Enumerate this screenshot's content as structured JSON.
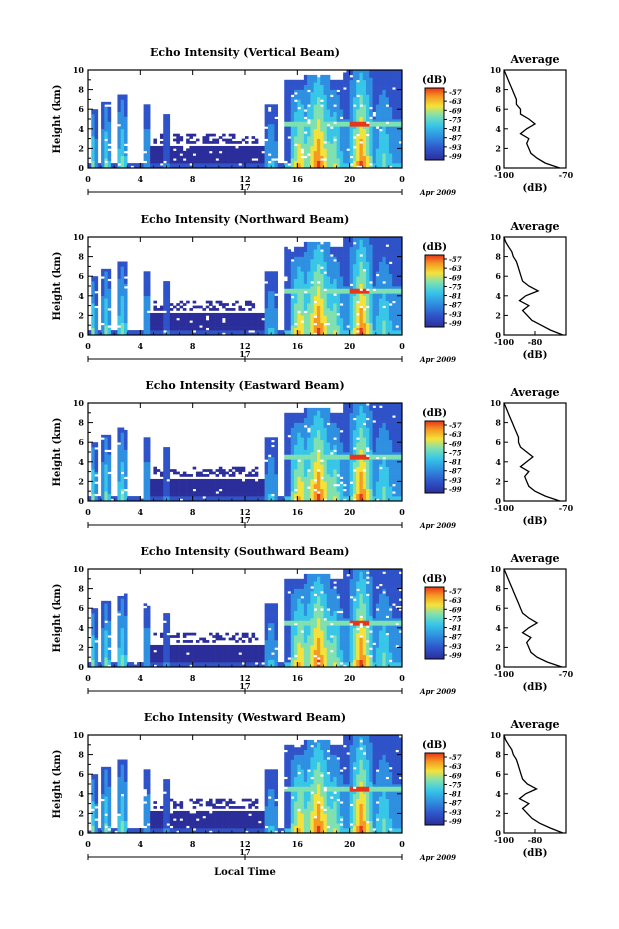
{
  "chart_data": [
    {
      "type": "heatmap",
      "title": "Echo Intensity (Vertical Beam)",
      "ylabel": "Height (km)",
      "ylim": [
        0,
        10
      ],
      "y_ticks": [
        "0",
        "2",
        "4",
        "6",
        "8",
        "10"
      ],
      "xlim": [
        0,
        24
      ],
      "x_ticks": [
        "0",
        "4",
        "8",
        "12",
        "16",
        "20",
        "0"
      ],
      "date_label": "17",
      "month_label": "Apr 2009",
      "colorbar": {
        "unit": "(dB)",
        "ticks": [
          "-57",
          "-63",
          "-69",
          "-75",
          "-81",
          "-87",
          "-93",
          "-99"
        ]
      },
      "profile": {
        "title": "Average",
        "xlabel": "(dB)",
        "x_ticks": [
          "-100",
          "-70"
        ],
        "xlim": [
          -100,
          -70
        ],
        "y_ticks": [
          "0",
          "2",
          "4",
          "6",
          "8",
          "10"
        ],
        "points": [
          [
            -73,
            0
          ],
          [
            -80,
            0.5
          ],
          [
            -84,
            1
          ],
          [
            -87,
            1.5
          ],
          [
            -88,
            2
          ],
          [
            -89,
            2.5
          ],
          [
            -88,
            3
          ],
          [
            -92,
            3.5
          ],
          [
            -89,
            4
          ],
          [
            -85,
            4.5
          ],
          [
            -88,
            5
          ],
          [
            -92,
            5.5
          ],
          [
            -92,
            6
          ],
          [
            -94,
            6.5
          ],
          [
            -94,
            7
          ],
          [
            -95,
            7.5
          ],
          [
            -96,
            8
          ],
          [
            -97,
            8.5
          ],
          [
            -98,
            9
          ],
          [
            -99,
            9.5
          ],
          [
            -100,
            10
          ]
        ]
      }
    },
    {
      "type": "heatmap",
      "title": "Echo Intensity (Northward Beam)",
      "ylabel": "Height (km)",
      "ylim": [
        0,
        10
      ],
      "y_ticks": [
        "0",
        "2",
        "4",
        "6",
        "8",
        "10"
      ],
      "xlim": [
        0,
        24
      ],
      "x_ticks": [
        "0",
        "4",
        "8",
        "12",
        "16",
        "20",
        "0"
      ],
      "date_label": "17",
      "month_label": "Apr 2009",
      "colorbar": {
        "unit": "(dB)",
        "ticks": [
          "-57",
          "-63",
          "-69",
          "-75",
          "-81",
          "-87",
          "-93",
          "-99"
        ]
      },
      "profile": {
        "title": "Average",
        "xlabel": "(dB)",
        "x_ticks": [
          "-100",
          "-80"
        ],
        "xlim": [
          -100,
          -60
        ],
        "y_ticks": [
          "0",
          "2",
          "4",
          "6",
          "8",
          "10"
        ],
        "points": [
          [
            -62,
            0
          ],
          [
            -70,
            0.5
          ],
          [
            -76,
            1
          ],
          [
            -82,
            1.5
          ],
          [
            -85,
            2
          ],
          [
            -88,
            2.5
          ],
          [
            -84,
            3
          ],
          [
            -90,
            3.5
          ],
          [
            -86,
            4
          ],
          [
            -78,
            4.5
          ],
          [
            -84,
            5
          ],
          [
            -88,
            5.5
          ],
          [
            -89,
            6
          ],
          [
            -90,
            6.5
          ],
          [
            -91,
            7
          ],
          [
            -92,
            7.5
          ],
          [
            -94,
            8
          ],
          [
            -95,
            8.5
          ],
          [
            -97,
            9
          ],
          [
            -99,
            9.5
          ],
          [
            -100,
            10
          ]
        ]
      }
    },
    {
      "type": "heatmap",
      "title": "Echo Intensity (Eastward Beam)",
      "ylabel": "Height (km)",
      "ylim": [
        0,
        10
      ],
      "y_ticks": [
        "0",
        "2",
        "4",
        "6",
        "8",
        "10"
      ],
      "xlim": [
        0,
        24
      ],
      "x_ticks": [
        "0",
        "4",
        "8",
        "12",
        "16",
        "20",
        "0"
      ],
      "date_label": "17",
      "month_label": "Apr 2009",
      "colorbar": {
        "unit": "(dB)",
        "ticks": [
          "-57",
          "-63",
          "-69",
          "-75",
          "-81",
          "-87",
          "-93",
          "-99"
        ]
      },
      "profile": {
        "title": "Average",
        "xlabel": "(dB)",
        "x_ticks": [
          "-100",
          "-70"
        ],
        "xlim": [
          -100,
          -70
        ],
        "y_ticks": [
          "0",
          "2",
          "4",
          "6",
          "8",
          "10"
        ],
        "points": [
          [
            -73,
            0
          ],
          [
            -80,
            0.5
          ],
          [
            -85,
            1
          ],
          [
            -88,
            1.5
          ],
          [
            -89,
            2
          ],
          [
            -90,
            2.5
          ],
          [
            -88,
            3
          ],
          [
            -92,
            3.5
          ],
          [
            -89,
            4
          ],
          [
            -86,
            4.5
          ],
          [
            -89,
            5
          ],
          [
            -92,
            5.5
          ],
          [
            -93,
            6
          ],
          [
            -93,
            6.5
          ],
          [
            -94,
            7
          ],
          [
            -95,
            7.5
          ],
          [
            -96,
            8
          ],
          [
            -97,
            8.5
          ],
          [
            -98,
            9
          ],
          [
            -99,
            9.5
          ],
          [
            -100,
            10
          ]
        ]
      }
    },
    {
      "type": "heatmap",
      "title": "Echo Intensity (Southward Beam)",
      "ylabel": "Height (km)",
      "ylim": [
        0,
        10
      ],
      "y_ticks": [
        "0",
        "2",
        "4",
        "6",
        "8",
        "10"
      ],
      "xlim": [
        0,
        24
      ],
      "x_ticks": [
        "0",
        "4",
        "8",
        "12",
        "16",
        "20",
        "0"
      ],
      "date_label": "17",
      "month_label": "Apr 2009",
      "colorbar": {
        "unit": "(dB)",
        "ticks": [
          "-57",
          "-63",
          "-69",
          "-75",
          "-81",
          "-87",
          "-93",
          "-99"
        ]
      },
      "profile": {
        "title": "Average",
        "xlabel": "(dB)",
        "x_ticks": [
          "-100",
          "-70"
        ],
        "xlim": [
          -100,
          -70
        ],
        "y_ticks": [
          "0",
          "2",
          "4",
          "6",
          "8",
          "10"
        ],
        "points": [
          [
            -72,
            0
          ],
          [
            -79,
            0.5
          ],
          [
            -84,
            1
          ],
          [
            -87,
            1.5
          ],
          [
            -88,
            2
          ],
          [
            -89,
            2.5
          ],
          [
            -87,
            3
          ],
          [
            -91,
            3.5
          ],
          [
            -88,
            4
          ],
          [
            -84,
            4.5
          ],
          [
            -88,
            5
          ],
          [
            -91,
            5.5
          ],
          [
            -92,
            6
          ],
          [
            -93,
            6.5
          ],
          [
            -94,
            7
          ],
          [
            -95,
            7.5
          ],
          [
            -96,
            8
          ],
          [
            -97,
            8.5
          ],
          [
            -98,
            9
          ],
          [
            -99,
            9.5
          ],
          [
            -100,
            10
          ]
        ]
      }
    },
    {
      "type": "heatmap",
      "title": "Echo Intensity (Westward Beam)",
      "ylabel": "Height (km)",
      "ylim": [
        0,
        10
      ],
      "y_ticks": [
        "0",
        "2",
        "4",
        "6",
        "8",
        "10"
      ],
      "xlim": [
        0,
        24
      ],
      "x_ticks": [
        "0",
        "4",
        "8",
        "12",
        "16",
        "20",
        "0"
      ],
      "date_label": "17",
      "month_label": "Apr 2009",
      "xlabel": "Local Time",
      "colorbar": {
        "unit": "(dB)",
        "ticks": [
          "-57",
          "-63",
          "-69",
          "-75",
          "-81",
          "-87",
          "-93",
          "-99"
        ]
      },
      "profile": {
        "title": "Average",
        "xlabel": "(dB)",
        "x_ticks": [
          "-100",
          "-80"
        ],
        "xlim": [
          -100,
          -60
        ],
        "y_ticks": [
          "0",
          "2",
          "4",
          "6",
          "8",
          "10"
        ],
        "points": [
          [
            -62,
            0
          ],
          [
            -70,
            0.5
          ],
          [
            -77,
            1
          ],
          [
            -82,
            1.5
          ],
          [
            -85,
            2
          ],
          [
            -88,
            2.5
          ],
          [
            -84,
            3
          ],
          [
            -90,
            3.5
          ],
          [
            -86,
            4
          ],
          [
            -79,
            4.5
          ],
          [
            -85,
            5
          ],
          [
            -88,
            5.5
          ],
          [
            -89,
            6
          ],
          [
            -90,
            6.5
          ],
          [
            -91,
            7
          ],
          [
            -92,
            7.5
          ],
          [
            -94,
            8
          ],
          [
            -95,
            8.5
          ],
          [
            -97,
            9
          ],
          [
            -99,
            9.5
          ],
          [
            -100,
            10
          ]
        ]
      }
    }
  ],
  "colors": {
    "colormap": [
      "#2b2e9a",
      "#2f52c8",
      "#2f8fe0",
      "#38c6e8",
      "#7fe0b0",
      "#f4e23a",
      "#f59a22",
      "#e8361a"
    ],
    "background": "#ffffff",
    "axis": "#000000"
  }
}
